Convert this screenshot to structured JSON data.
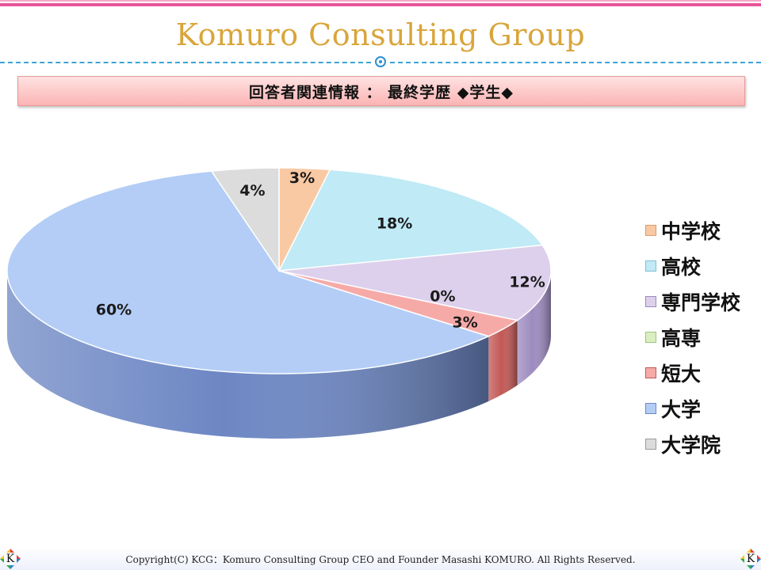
{
  "header": {
    "brand_title": "Komuro Consulting Group",
    "subtitle": "回答者関連情報 ： 最終学歴 ◆学生◆"
  },
  "chart_data": {
    "type": "pie",
    "style": "3d-pie",
    "categories": [
      "中学校",
      "高校",
      "専門学校",
      "高専",
      "短大",
      "大学",
      "大学院"
    ],
    "values": [
      3,
      18,
      12,
      0,
      3,
      60,
      4
    ],
    "data_labels": [
      "3%",
      "18%",
      "12%",
      "0%",
      "3%",
      "60%",
      "4%"
    ],
    "unit": "%",
    "legend_position": "right",
    "colors": [
      "#f9c9a3",
      "#bfeaf6",
      "#dcd0ec",
      "#d9efc0",
      "#f6aaa8",
      "#b3cdf6",
      "#dcdcdc"
    ],
    "side_colors": [
      "#d59d74",
      "#83bfd0",
      "#9d8bbf",
      "#9ec47e",
      "#c25956",
      "#6d87c4",
      "#9b9b9b"
    ]
  },
  "footer": {
    "copyright": "Copyright(C) KCG：Komuro Consulting Group CEO and Founder Masashi KOMURO. All Rights Reserved.",
    "logo_letter": "K",
    "logo_icon": "k-diamond-logo"
  }
}
